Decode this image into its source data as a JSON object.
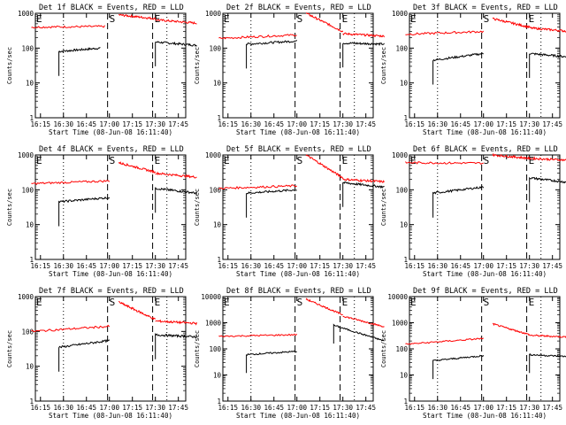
{
  "time_ticks": [
    "16:15",
    "16:30",
    "16:45",
    "17:00",
    "17:15",
    "17:30",
    "17:45"
  ],
  "xlabel": "Start Time (08-Jun-08 16:11:40)",
  "ylabel": "Counts/sec",
  "markers": {
    "S": "S",
    "E": "E"
  },
  "colors": {
    "events": "#000000",
    "lld": "#ff0000"
  },
  "chart_data": [
    {
      "type": "line",
      "title": "Det 1f BLACK = Events, RED = LLD",
      "ylim": [
        1,
        1000
      ],
      "yticks": [
        "1",
        "10",
        "100",
        "1000"
      ],
      "yscale": "log",
      "series": [
        {
          "name": "Events",
          "segments": [
            {
              "x": [
                16.45,
                16.9
              ],
              "y": [
                80,
                100
              ]
            },
            {
              "x": [
                17.5,
                17.95
              ],
              "y": [
                150,
                120
              ]
            }
          ]
        },
        {
          "name": "LLD",
          "segments": [
            {
              "x": [
                16.15,
                16.95
              ],
              "y": [
                400,
                420
              ]
            },
            {
              "x": [
                17.1,
                17.5
              ],
              "y": [
                900,
                700
              ]
            },
            {
              "x": [
                17.5,
                17.95
              ],
              "y": [
                650,
                520
              ]
            }
          ]
        }
      ]
    },
    {
      "type": "line",
      "title": "Det 2f BLACK = Events, RED = LLD",
      "ylim": [
        1,
        1000
      ],
      "yticks": [
        "1",
        "10",
        "100",
        "1000"
      ],
      "yscale": "log",
      "series": [
        {
          "name": "Events",
          "segments": [
            {
              "x": [
                16.45,
                17.0
              ],
              "y": [
                130,
                160
              ]
            },
            {
              "x": [
                17.5,
                17.95
              ],
              "y": [
                140,
                130
              ]
            }
          ]
        },
        {
          "name": "LLD",
          "segments": [
            {
              "x": [
                16.15,
                17.0
              ],
              "y": [
                190,
                240
              ]
            },
            {
              "x": [
                17.1,
                17.5
              ],
              "y": [
                1000,
                300
              ]
            },
            {
              "x": [
                17.5,
                17.95
              ],
              "y": [
                260,
                220
              ]
            }
          ]
        }
      ]
    },
    {
      "type": "line",
      "title": "Det 3f BLACK = Events, RED = LLD",
      "ylim": [
        1,
        1000
      ],
      "yticks": [
        "1",
        "10",
        "100",
        "1000"
      ],
      "yscale": "log",
      "series": [
        {
          "name": "Events",
          "segments": [
            {
              "x": [
                16.45,
                17.0
              ],
              "y": [
                45,
                70
              ]
            },
            {
              "x": [
                17.5,
                17.95
              ],
              "y": [
                70,
                55
              ]
            }
          ]
        },
        {
          "name": "LLD",
          "segments": [
            {
              "x": [
                16.15,
                17.0
              ],
              "y": [
                250,
                300
              ]
            },
            {
              "x": [
                17.1,
                17.5
              ],
              "y": [
                700,
                400
              ]
            },
            {
              "x": [
                17.5,
                17.95
              ],
              "y": [
                380,
                300
              ]
            }
          ]
        }
      ]
    },
    {
      "type": "line",
      "title": "Det 4f BLACK = Events, RED = LLD",
      "ylim": [
        1,
        1000
      ],
      "yticks": [
        "1",
        "10",
        "100",
        "1000"
      ],
      "yscale": "log",
      "series": [
        {
          "name": "Events",
          "segments": [
            {
              "x": [
                16.45,
                17.0
              ],
              "y": [
                45,
                60
              ]
            },
            {
              "x": [
                17.5,
                17.95
              ],
              "y": [
                110,
                80
              ]
            }
          ]
        },
        {
          "name": "LLD",
          "segments": [
            {
              "x": [
                16.15,
                17.0
              ],
              "y": [
                150,
                180
              ]
            },
            {
              "x": [
                17.1,
                17.5
              ],
              "y": [
                600,
                320
              ]
            },
            {
              "x": [
                17.5,
                17.95
              ],
              "y": [
                300,
                230
              ]
            }
          ]
        }
      ]
    },
    {
      "type": "line",
      "title": "Det 5f BLACK = Events, RED = LLD",
      "ylim": [
        1,
        1000
      ],
      "yticks": [
        "1",
        "10",
        "100",
        "1000"
      ],
      "yscale": "log",
      "series": [
        {
          "name": "Events",
          "segments": [
            {
              "x": [
                16.45,
                17.0
              ],
              "y": [
                80,
                100
              ]
            },
            {
              "x": [
                17.5,
                17.95
              ],
              "y": [
                160,
                120
              ]
            }
          ]
        },
        {
          "name": "LLD",
          "segments": [
            {
              "x": [
                16.15,
                17.0
              ],
              "y": [
                110,
                130
              ]
            },
            {
              "x": [
                17.1,
                17.5
              ],
              "y": [
                1000,
                220
              ]
            },
            {
              "x": [
                17.5,
                17.95
              ],
              "y": [
                200,
                170
              ]
            }
          ]
        }
      ]
    },
    {
      "type": "line",
      "title": "Det 6f BLACK = Events, RED = LLD",
      "ylim": [
        1,
        1000
      ],
      "yticks": [
        "1",
        "10",
        "100",
        "1000"
      ],
      "yscale": "log",
      "series": [
        {
          "name": "Events",
          "segments": [
            {
              "x": [
                16.45,
                17.0
              ],
              "y": [
                80,
                120
              ]
            },
            {
              "x": [
                17.5,
                17.95
              ],
              "y": [
                220,
                160
              ]
            }
          ]
        },
        {
          "name": "LLD",
          "segments": [
            {
              "x": [
                16.15,
                17.0
              ],
              "y": [
                600,
                580
              ]
            },
            {
              "x": [
                17.1,
                17.5
              ],
              "y": [
                1000,
                800
              ]
            },
            {
              "x": [
                17.5,
                17.95
              ],
              "y": [
                800,
                700
              ]
            }
          ]
        }
      ]
    },
    {
      "type": "line",
      "title": "Det 7f BLACK = Events, RED = LLD",
      "ylim": [
        1,
        1000
      ],
      "yticks": [
        "1",
        "10",
        "100",
        "1000"
      ],
      "yscale": "log",
      "series": [
        {
          "name": "Events",
          "segments": [
            {
              "x": [
                16.45,
                17.0
              ],
              "y": [
                35,
                55
              ]
            },
            {
              "x": [
                17.5,
                17.95
              ],
              "y": [
                80,
                70
              ]
            }
          ]
        },
        {
          "name": "LLD",
          "segments": [
            {
              "x": [
                16.15,
                17.0
              ],
              "y": [
                100,
                140
              ]
            },
            {
              "x": [
                17.1,
                17.5
              ],
              "y": [
                700,
                220
              ]
            },
            {
              "x": [
                17.5,
                17.95
              ],
              "y": [
                200,
                170
              ]
            }
          ]
        }
      ]
    },
    {
      "type": "line",
      "title": "Det 8f BLACK = Events, RED = LLD",
      "ylim": [
        1,
        10000
      ],
      "yticks": [
        "1",
        "10",
        "100",
        "1000",
        "10000"
      ],
      "yscale": "log",
      "series": [
        {
          "name": "Events",
          "segments": [
            {
              "x": [
                16.45,
                17.0
              ],
              "y": [
                60,
                80
              ]
            },
            {
              "x": [
                17.4,
                17.95
              ],
              "y": [
                800,
                200
              ]
            }
          ]
        },
        {
          "name": "LLD",
          "segments": [
            {
              "x": [
                16.15,
                17.0
              ],
              "y": [
                300,
                350
              ]
            },
            {
              "x": [
                17.1,
                17.5
              ],
              "y": [
                8000,
                2000
              ]
            },
            {
              "x": [
                17.5,
                17.95
              ],
              "y": [
                1800,
                700
              ]
            }
          ]
        }
      ]
    },
    {
      "type": "line",
      "title": "Det 9f BLACK = Events, RED = LLD",
      "ylim": [
        1,
        10000
      ],
      "yticks": [
        "1",
        "10",
        "100",
        "1000",
        "10000"
      ],
      "yscale": "log",
      "series": [
        {
          "name": "Events",
          "segments": [
            {
              "x": [
                16.45,
                17.0
              ],
              "y": [
                35,
                55
              ]
            },
            {
              "x": [
                17.5,
                17.95
              ],
              "y": [
                60,
                50
              ]
            }
          ]
        },
        {
          "name": "LLD",
          "segments": [
            {
              "x": [
                16.15,
                17.0
              ],
              "y": [
                150,
                250
              ]
            },
            {
              "x": [
                17.1,
                17.5
              ],
              "y": [
                900,
                350
              ]
            },
            {
              "x": [
                17.5,
                17.95
              ],
              "y": [
                330,
                280
              ]
            }
          ]
        }
      ]
    }
  ]
}
